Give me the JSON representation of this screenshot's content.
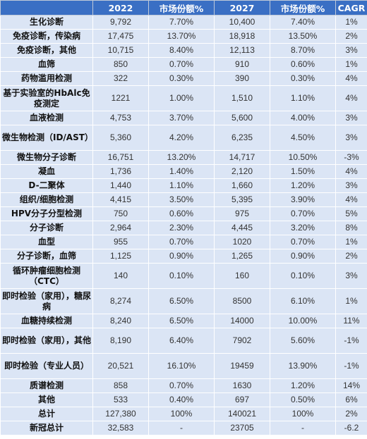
{
  "table": {
    "headers": [
      "",
      "2022",
      "市场份额%",
      "2027",
      "市场份额%",
      "CAGR"
    ],
    "rows": [
      {
        "name": "生化诊断",
        "v2022": "9,792",
        "s2022": "7.70%",
        "v2027": "10,400",
        "s2027": "7.40%",
        "cagr": "1%",
        "h": 20
      },
      {
        "name": "免疫诊断，传染病",
        "v2022": "17,475",
        "s2022": "13.70%",
        "v2027": "18,918",
        "s2027": "13.50%",
        "cagr": "2%",
        "h": 20
      },
      {
        "name": "免疫诊断，其他",
        "v2022": "10,715",
        "s2022": "8.40%",
        "v2027": "12,113",
        "s2027": "8.70%",
        "cagr": "3%",
        "h": 20
      },
      {
        "name": "血筛",
        "v2022": "850",
        "s2022": "0.70%",
        "v2027": "910",
        "s2027": "0.60%",
        "cagr": "1%",
        "h": 20
      },
      {
        "name": "药物滥用检测",
        "v2022": "322",
        "s2022": "0.30%",
        "v2027": "390",
        "s2027": "0.30%",
        "cagr": "4%",
        "h": 20
      },
      {
        "name": "基于实验室的HbAlc免疫测定",
        "v2022": "1221",
        "s2022": "1.00%",
        "v2027": "1,510",
        "s2027": "1.10%",
        "cagr": "4%",
        "h": 36
      },
      {
        "name": "血液检测",
        "v2022": "4,753",
        "s2022": "3.70%",
        "v2027": "5,600",
        "s2027": "4.00%",
        "cagr": "3%",
        "h": 20
      },
      {
        "name": "微生物检测（ID/AST）",
        "v2022": "5,360",
        "s2022": "4.20%",
        "v2027": "6,235",
        "s2027": "4.50%",
        "cagr": "3%",
        "h": 36
      },
      {
        "name": "微生物分子诊断",
        "v2022": "16,751",
        "s2022": "13.20%",
        "v2027": "14,717",
        "s2027": "10.50%",
        "cagr": "-3%",
        "h": 20
      },
      {
        "name": "凝血",
        "v2022": "1,736",
        "s2022": "1.40%",
        "v2027": "2,120",
        "s2027": "1.50%",
        "cagr": "4%",
        "h": 20
      },
      {
        "name": "D-二聚体",
        "v2022": "1,440",
        "s2022": "1.10%",
        "v2027": "1,660",
        "s2027": "1.20%",
        "cagr": "3%",
        "h": 20
      },
      {
        "name": "组织/细胞检测",
        "v2022": "4,415",
        "s2022": "3.50%",
        "v2027": "5,395",
        "s2027": "3.90%",
        "cagr": "4%",
        "h": 20
      },
      {
        "name": "HPV分子分型检测",
        "v2022": "750",
        "s2022": "0.60%",
        "v2027": "975",
        "s2027": "0.70%",
        "cagr": "5%",
        "h": 20
      },
      {
        "name": "分子诊断",
        "v2022": "2,964",
        "s2022": "2.30%",
        "v2027": "4,445",
        "s2027": "3.20%",
        "cagr": "8%",
        "h": 20
      },
      {
        "name": "血型",
        "v2022": "955",
        "s2022": "0.70%",
        "v2027": "1020",
        "s2027": "0.70%",
        "cagr": "1%",
        "h": 20
      },
      {
        "name": "分子诊断，血筛",
        "v2022": "1,125",
        "s2022": "0.90%",
        "v2027": "1,265",
        "s2027": "0.90%",
        "cagr": "2%",
        "h": 20
      },
      {
        "name": "循环肿瘤细胞检测（CTC）",
        "v2022": "140",
        "s2022": "0.10%",
        "v2027": "160",
        "s2027": "0.10%",
        "cagr": "3%",
        "h": 36
      },
      {
        "name": "即时检验（家用），糖尿病",
        "v2022": "8,274",
        "s2022": "6.50%",
        "v2027": "8500",
        "s2027": "6.10%",
        "cagr": "1%",
        "h": 36
      },
      {
        "name": "血糖持续检测",
        "v2022": "8,240",
        "s2022": "6.50%",
        "v2027": "14000",
        "s2027": "10.00%",
        "cagr": "11%",
        "h": 20
      },
      {
        "name": "即时检验（家用），其他",
        "v2022": "8,190",
        "s2022": "6.40%",
        "v2027": "7902",
        "s2027": "5.60%",
        "cagr": "-1%",
        "h": 36
      },
      {
        "name": "即时检验（专业人员）",
        "v2022": "20,521",
        "s2022": "16.10%",
        "v2027": "19459",
        "s2027": "13.90%",
        "cagr": "-1%",
        "h": 36
      },
      {
        "name": "质谱检测",
        "v2022": "858",
        "s2022": "0.70%",
        "v2027": "1630",
        "s2027": "1.20%",
        "cagr": "14%",
        "h": 20
      },
      {
        "name": "其他",
        "v2022": "533",
        "s2022": "0.40%",
        "v2027": "697",
        "s2027": "0.50%",
        "cagr": "6%",
        "h": 20
      },
      {
        "name": "总计",
        "v2022": "127,380",
        "s2022": "100%",
        "v2027": "140021",
        "s2027": "100%",
        "cagr": "2%",
        "h": 20
      },
      {
        "name": "新冠总计",
        "v2022": "32,583",
        "s2022": "-",
        "v2027": "23705",
        "s2027": "-",
        "cagr": "-6.2",
        "h": 20
      }
    ]
  }
}
